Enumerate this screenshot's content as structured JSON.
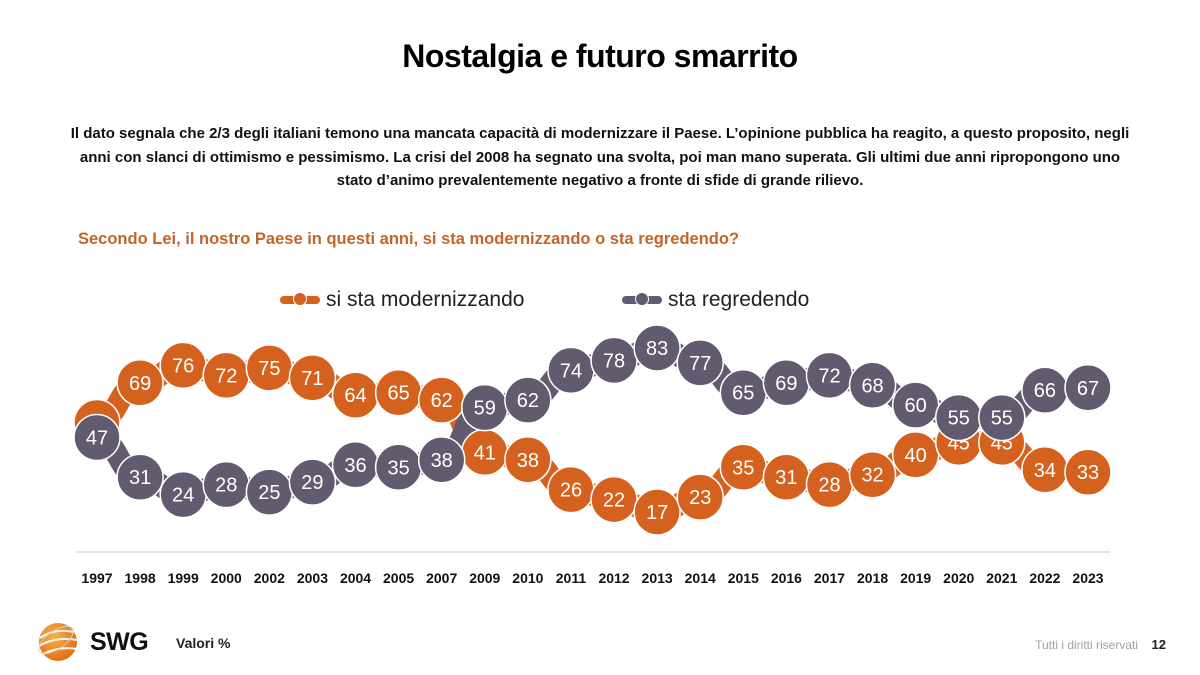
{
  "slide": {
    "title": "Nostalgia e futuro smarrito",
    "intro_lines": [
      "Il dato segnala che 2/3 degli italiani temono una mancata capacità di modernizzare il Paese. L’opinione pubblica ha reagito, a questo proposito, negli",
      "anni con slanci di ottimismo e pessimismo. La crisi del 2008 ha segnato una svolta, poi man mano superata. Gli ultimi due anni ripropongono uno",
      "stato d’animo prevalentemente negativo a fronte di sfide di grande rilievo."
    ],
    "question": "Secondo Lei, il nostro Paese in questi anni, si sta modernizzando o sta regredendo?"
  },
  "footer": {
    "brand": "SWG",
    "note": "Valori %",
    "rights": "Tutti i diritti riservati",
    "page_number": "12"
  },
  "colors": {
    "modernizzando": "#d4611e",
    "regredendo": "#625a6e",
    "question": "#c5632a",
    "axis": "#c8c8c8"
  },
  "chart_data": {
    "type": "line",
    "title": "Secondo Lei, il nostro Paese in questi anni, si sta modernizzando o sta regredendo?",
    "xlabel": "",
    "ylabel": "",
    "unit": "%",
    "legend_position": "top",
    "grid": false,
    "categories": [
      "1997",
      "1998",
      "1999",
      "2000",
      "2002",
      "2003",
      "2004",
      "2005",
      "2007",
      "2009",
      "2010",
      "2011",
      "2012",
      "2013",
      "2014",
      "2015",
      "2016",
      "2017",
      "2018",
      "2019",
      "2020",
      "2021",
      "2022",
      "2023"
    ],
    "series": [
      {
        "name": "si sta modernizzando",
        "color": "#d4611e",
        "values": [
          53,
          69,
          76,
          72,
          75,
          71,
          64,
          65,
          62,
          41,
          38,
          26,
          22,
          17,
          23,
          35,
          31,
          28,
          32,
          40,
          45,
          45,
          34,
          33
        ]
      },
      {
        "name": "sta regredendo",
        "color": "#625a6e",
        "values": [
          47,
          31,
          24,
          28,
          25,
          29,
          36,
          35,
          38,
          59,
          62,
          74,
          78,
          83,
          77,
          65,
          69,
          72,
          68,
          60,
          55,
          55,
          66,
          67
        ]
      }
    ],
    "ylim": [
      17,
      83
    ]
  }
}
